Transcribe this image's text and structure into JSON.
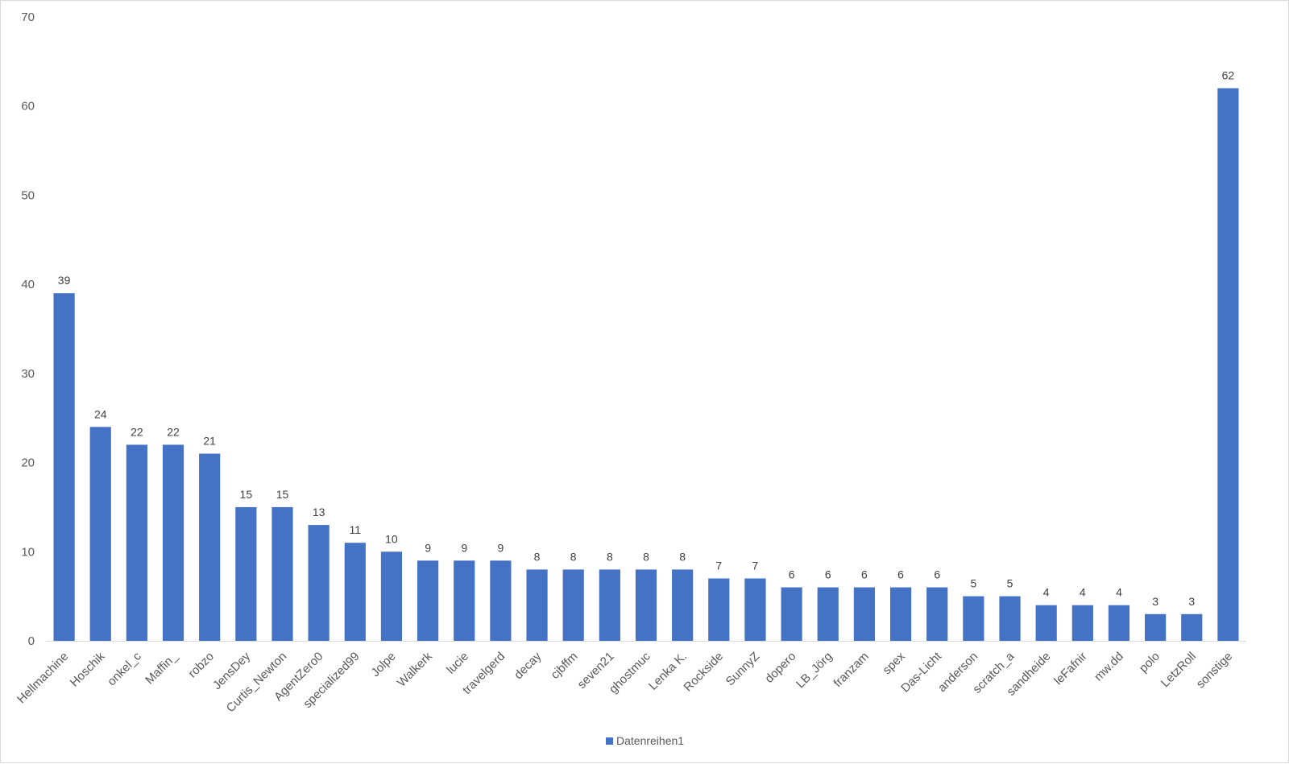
{
  "chart_data": {
    "type": "bar",
    "categories": [
      "Hellmachine",
      "Hoschik",
      "onkel_c",
      "Maffin_",
      "robzo",
      "JensDey",
      "Curtis_Newton",
      "AgentZero0",
      "specialized99",
      "Jolpe",
      "Walkerk",
      "lucie",
      "travelgerd",
      "decay",
      "cjbffm",
      "seven21",
      "ghostmuc",
      "Lenka K.",
      "Rockside",
      "SunnyZ",
      "dopero",
      "LB_Jörg",
      "franzam",
      "spex",
      "Das-Licht",
      "anderson",
      "scratch_a",
      "sandheide",
      "leFafnir",
      "mw.dd",
      "polo",
      "LetzRoll",
      "sonstige"
    ],
    "series": [
      {
        "name": "Datenreihen1",
        "values": [
          39,
          24,
          22,
          22,
          21,
          15,
          15,
          13,
          11,
          10,
          9,
          9,
          9,
          8,
          8,
          8,
          8,
          8,
          7,
          7,
          6,
          6,
          6,
          6,
          6,
          5,
          5,
          4,
          4,
          4,
          3,
          3,
          62
        ]
      }
    ],
    "ylim": [
      0,
      70
    ],
    "yticks": [
      0,
      10,
      20,
      30,
      40,
      50,
      60,
      70
    ],
    "title": "",
    "xlabel": "",
    "ylabel": "",
    "grid": false,
    "legend_position": "bottom",
    "colors": {
      "bar": "#4472c4",
      "axis": "#d9d9d9",
      "tick_text": "#595959",
      "label_text": "#404040"
    }
  }
}
